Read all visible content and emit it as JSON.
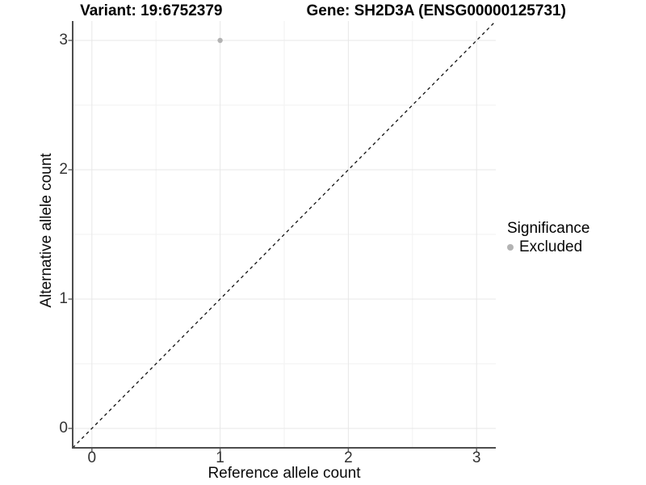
{
  "titles": {
    "variant": "Variant: 19:6752379",
    "gene": "Gene: SH2D3A (ENSG00000125731)"
  },
  "axes": {
    "x_label": "Reference allele count",
    "y_label": "Alternative allele count"
  },
  "legend": {
    "title": "Significance",
    "position": "right",
    "items": [
      {
        "label": "Excluded",
        "color": "#b3b3b3"
      }
    ]
  },
  "chart_data": {
    "type": "scatter",
    "title": "Variant: 19:6752379    Gene: SH2D3A (ENSG00000125731)",
    "xlabel": "Reference allele count",
    "ylabel": "Alternative allele count",
    "xlim": [
      -0.15,
      3.15
    ],
    "ylim": [
      -0.15,
      3.15
    ],
    "x_ticks": [
      0,
      1,
      2,
      3
    ],
    "y_ticks": [
      0,
      1,
      2,
      3
    ],
    "x_minor_ticks": [
      0.5,
      1.5,
      2.5
    ],
    "y_minor_ticks": [
      0.5,
      1.5,
      2.5
    ],
    "grid": "major+minor",
    "legend_position": "right",
    "reference_line": {
      "type": "identity",
      "slope": 1,
      "intercept": 0,
      "style": "dashed",
      "color": "#111111"
    },
    "series": [
      {
        "name": "Excluded",
        "color": "#b3b3b3",
        "points": [
          {
            "x": 1,
            "y": 3
          }
        ]
      }
    ],
    "colors": {
      "background": "#ffffff",
      "grid_major": "#e7e7e7",
      "grid_minor": "#f2f2f2",
      "axis_line": "#4d4d4d",
      "tick_mark": "#666666",
      "tick_label": "#333333",
      "point": "#b3b3b3"
    }
  }
}
